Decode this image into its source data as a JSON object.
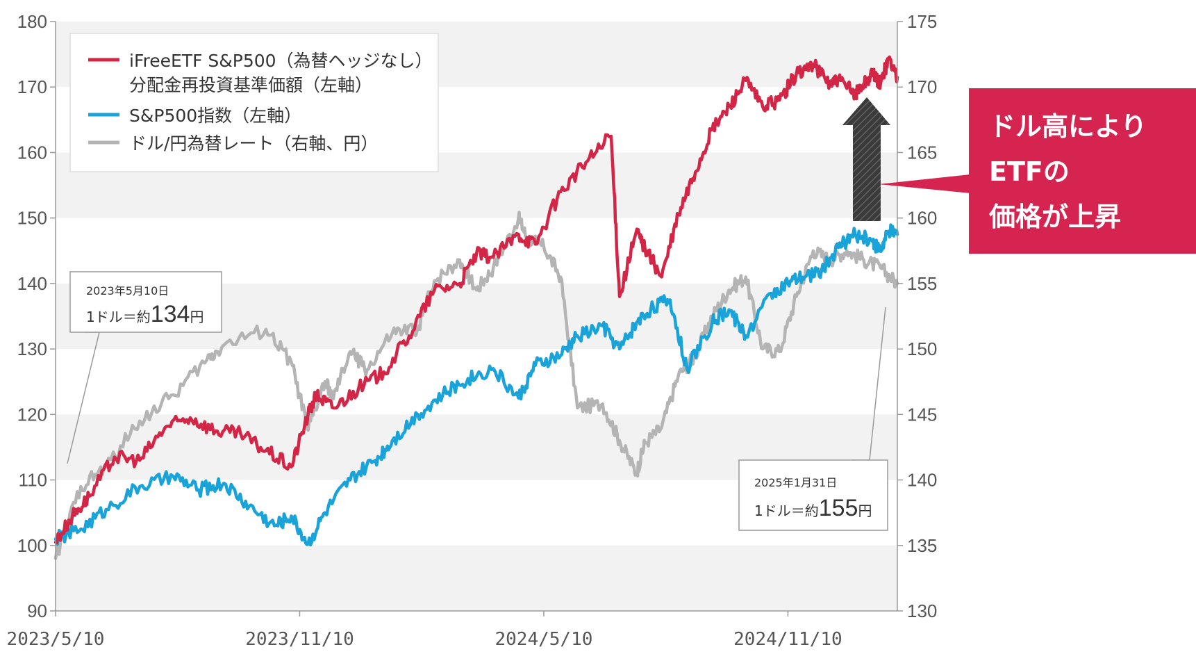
{
  "chart_data": {
    "type": "line",
    "title": "",
    "x_labels": [
      "2023/5/10",
      "2023/11/10",
      "2024/5/10",
      "2024/11/10"
    ],
    "x_range": [
      "2023/5/10",
      "2025/1/31"
    ],
    "left_axis": {
      "min": 90,
      "max": 180,
      "ticks": [
        90,
        100,
        110,
        120,
        130,
        140,
        150,
        160,
        170,
        180
      ]
    },
    "right_axis": {
      "min": 130,
      "max": 175,
      "ticks": [
        130,
        135,
        140,
        145,
        150,
        155,
        160,
        165,
        170,
        175
      ]
    },
    "legend": [
      {
        "key": "etf",
        "line1": "iFreeETF S&P500（為替ヘッジなし）",
        "line2": "分配金再投資基準価額（左軸）",
        "color": "#d32545"
      },
      {
        "key": "sp500",
        "line1": "S&P500指数（左軸）",
        "line2": "",
        "color": "#1aa3d8"
      },
      {
        "key": "usdjpy",
        "line1": "ドル/円為替レート（右軸、円）",
        "line2": "",
        "color": "#b4b4b4"
      }
    ],
    "series": [
      {
        "key": "usdjpy",
        "name": "ドル/円為替レート",
        "axis": "right",
        "color": "#b4b4b4",
        "t": [
          0,
          0.03,
          0.06,
          0.1,
          0.14,
          0.18,
          0.2,
          0.25,
          0.28,
          0.3,
          0.32,
          0.33,
          0.35,
          0.37,
          0.4,
          0.43,
          0.45,
          0.48,
          0.5,
          0.52,
          0.55,
          0.56,
          0.58,
          0.6,
          0.62,
          0.65,
          0.67,
          0.69,
          0.7,
          0.72,
          0.74,
          0.76,
          0.78,
          0.8,
          0.82,
          0.84,
          0.86,
          0.88,
          0.9,
          0.92,
          0.94,
          0.96,
          0.98,
          1.0
        ],
        "values": [
          134,
          139.5,
          141,
          144.5,
          146.5,
          149.2,
          150.3,
          151.5,
          149,
          143.8,
          147.5,
          146.2,
          149.8,
          148.4,
          151.2,
          151.5,
          155.2,
          156.8,
          154.5,
          156.2,
          160,
          158.5,
          157.8,
          155.5,
          145.5,
          145.8,
          143,
          140.5,
          142.8,
          144,
          148,
          149.5,
          152.5,
          154.5,
          155.5,
          150,
          149.8,
          154,
          157.5,
          156.8,
          157.5,
          156.8,
          156.2,
          155
        ]
      },
      {
        "key": "sp500",
        "name": "S&P500指数",
        "axis": "left",
        "color": "#1aa3d8",
        "t": [
          0,
          0.03,
          0.06,
          0.1,
          0.14,
          0.17,
          0.2,
          0.23,
          0.26,
          0.28,
          0.3,
          0.32,
          0.35,
          0.38,
          0.4,
          0.43,
          0.46,
          0.49,
          0.52,
          0.55,
          0.57,
          0.6,
          0.62,
          0.65,
          0.67,
          0.69,
          0.71,
          0.73,
          0.75,
          0.78,
          0.8,
          0.82,
          0.85,
          0.87,
          0.89,
          0.91,
          0.93,
          0.95,
          0.97,
          0.98,
          0.99,
          1.0
        ],
        "values": [
          101,
          102.5,
          105.5,
          109,
          110.5,
          108.5,
          109.5,
          106,
          103,
          104.5,
          100.2,
          105,
          110,
          113,
          116,
          120,
          123,
          125.5,
          127,
          122.5,
          127.5,
          129,
          132,
          133.5,
          130,
          134,
          136.5,
          137.5,
          127,
          134,
          136,
          132,
          138.5,
          140,
          141,
          142,
          145.5,
          147.5,
          146.5,
          145,
          148,
          147.5
        ]
      },
      {
        "key": "etf",
        "name": "iFreeETF S&P500（為替ヘッジなし）分配金再投資基準価額",
        "axis": "left",
        "color": "#d32545",
        "t": [
          0,
          0.02,
          0.04,
          0.07,
          0.1,
          0.13,
          0.16,
          0.19,
          0.22,
          0.25,
          0.28,
          0.3,
          0.31,
          0.33,
          0.36,
          0.39,
          0.42,
          0.45,
          0.48,
          0.5,
          0.52,
          0.55,
          0.57,
          0.6,
          0.63,
          0.66,
          0.67,
          0.69,
          0.7,
          0.72,
          0.74,
          0.76,
          0.78,
          0.8,
          0.82,
          0.84,
          0.86,
          0.88,
          0.9,
          0.92,
          0.93,
          0.95,
          0.96,
          0.97,
          0.98,
          0.99,
          1.0
        ],
        "values": [
          100.5,
          104.5,
          107.5,
          113.5,
          113,
          118,
          119.5,
          117.5,
          117,
          114.5,
          112,
          120,
          123,
          121,
          124,
          126.5,
          132,
          139,
          140,
          144.5,
          144,
          147.5,
          146,
          154,
          158.5,
          162.5,
          138,
          148,
          145.5,
          141,
          150.5,
          157,
          163.5,
          167,
          171,
          167,
          168,
          172,
          173.5,
          170.5,
          171,
          169,
          170.5,
          172,
          170.5,
          174.5,
          171.5
        ]
      }
    ],
    "annotations": [
      {
        "key": "start",
        "date": "2023年5月10日",
        "prefix": "1ドル＝約",
        "value": "134",
        "unit": "円"
      },
      {
        "key": "end",
        "date": "2025年1月31日",
        "prefix": "1ドル＝約",
        "value": "155",
        "unit": "円"
      }
    ],
    "banner": {
      "lines": [
        "ドル高により",
        "ETFの",
        "価格が上昇"
      ],
      "color": "#d62450"
    },
    "arrow_color": "#3a3a3a",
    "band_color": "#f2f2f2",
    "grid": false
  }
}
